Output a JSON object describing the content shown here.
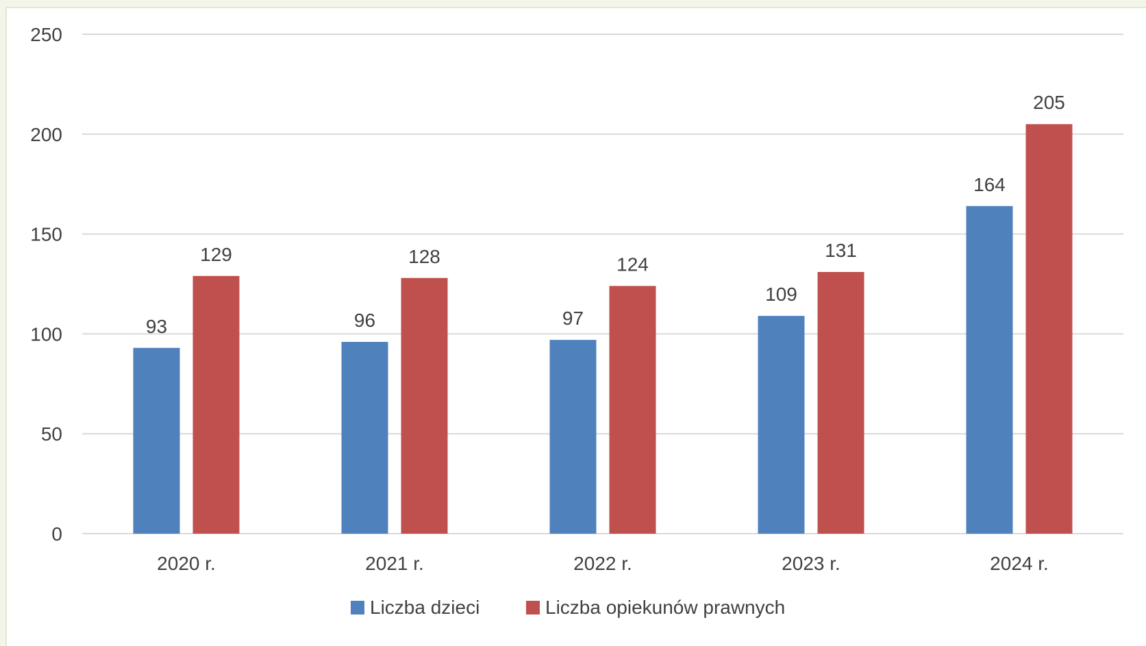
{
  "chart_data": {
    "type": "bar",
    "categories": [
      "2020 r.",
      "2021 r.",
      "2022 r.",
      "2023 r.",
      "2024 r."
    ],
    "series": [
      {
        "name": "Liczba dzieci",
        "values": [
          93,
          96,
          97,
          109,
          164
        ],
        "color": "#4f81bd"
      },
      {
        "name": "Liczba opiekunów prawnych",
        "values": [
          129,
          128,
          124,
          131,
          205
        ],
        "color": "#c0504d"
      }
    ],
    "title": "",
    "xlabel": "",
    "ylabel": "",
    "ylim": [
      0,
      250
    ],
    "yticks": [
      "0",
      "50",
      "100",
      "150",
      "200",
      "250"
    ],
    "grid": true,
    "legend_position": "bottom",
    "gridline_color": "#d9d9d9",
    "text_color": "#404040"
  }
}
